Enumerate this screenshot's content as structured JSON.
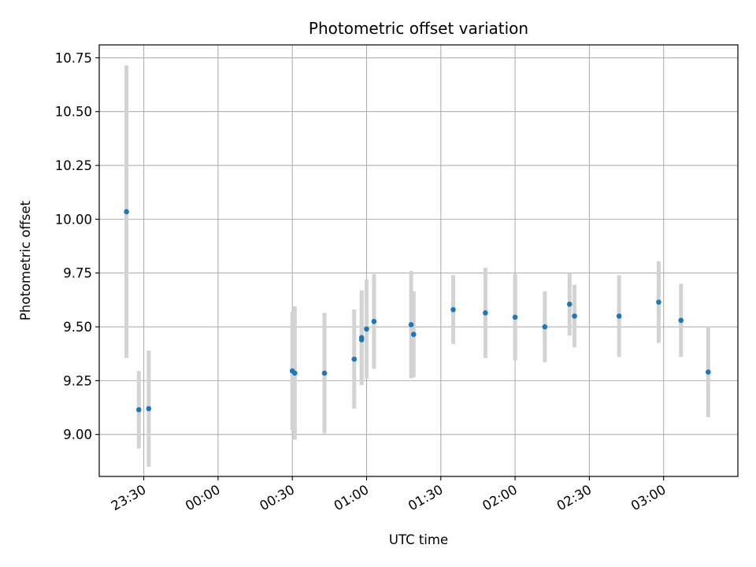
{
  "chart_data": {
    "type": "scatter",
    "title": "Photometric offset variation",
    "xlabel": "UTC time",
    "ylabel": "Photometric offset",
    "x_axis_type": "time",
    "x_domain": [
      "23:12",
      "03:30"
    ],
    "x_ticks": [
      "23:30",
      "00:00",
      "00:30",
      "01:00",
      "01:30",
      "02:00",
      "02:30",
      "03:00"
    ],
    "ylim": [
      8.805,
      10.81
    ],
    "y_ticks": [
      "9.00",
      "9.25",
      "9.50",
      "9.75",
      "10.00",
      "10.25",
      "10.50",
      "10.75"
    ],
    "grid": true,
    "point_color": "#1f77b4",
    "errorbar_color": "#d3d3d3",
    "series": [
      {
        "points": [
          {
            "x": "23:23",
            "y": 10.035,
            "err": 0.68
          },
          {
            "x": "23:28",
            "y": 9.115,
            "err": 0.18
          },
          {
            "x": "23:32",
            "y": 9.12,
            "err": 0.27
          },
          {
            "x": "00:30",
            "y": 9.295,
            "err": 0.275
          },
          {
            "x": "00:31",
            "y": 9.285,
            "err": 0.31
          },
          {
            "x": "00:43",
            "y": 9.285,
            "err": 0.28
          },
          {
            "x": "00:55",
            "y": 9.35,
            "err": 0.23
          },
          {
            "x": "00:58",
            "y": 9.44,
            "err": 0.2
          },
          {
            "x": "00:58",
            "y": 9.45,
            "err": 0.22
          },
          {
            "x": "01:00",
            "y": 9.49,
            "err": 0.23
          },
          {
            "x": "01:03",
            "y": 9.525,
            "err": 0.22
          },
          {
            "x": "01:18",
            "y": 9.51,
            "err": 0.25
          },
          {
            "x": "01:19",
            "y": 9.465,
            "err": 0.2
          },
          {
            "x": "01:35",
            "y": 9.58,
            "err": 0.16
          },
          {
            "x": "01:48",
            "y": 9.565,
            "err": 0.21
          },
          {
            "x": "02:00",
            "y": 9.545,
            "err": 0.2
          },
          {
            "x": "02:12",
            "y": 9.5,
            "err": 0.165
          },
          {
            "x": "02:22",
            "y": 9.605,
            "err": 0.145
          },
          {
            "x": "02:24",
            "y": 9.55,
            "err": 0.145
          },
          {
            "x": "02:42",
            "y": 9.55,
            "err": 0.19
          },
          {
            "x": "02:58",
            "y": 9.615,
            "err": 0.19
          },
          {
            "x": "03:07",
            "y": 9.53,
            "err": 0.17
          },
          {
            "x": "03:18",
            "y": 9.29,
            "err": 0.21
          }
        ]
      }
    ]
  }
}
